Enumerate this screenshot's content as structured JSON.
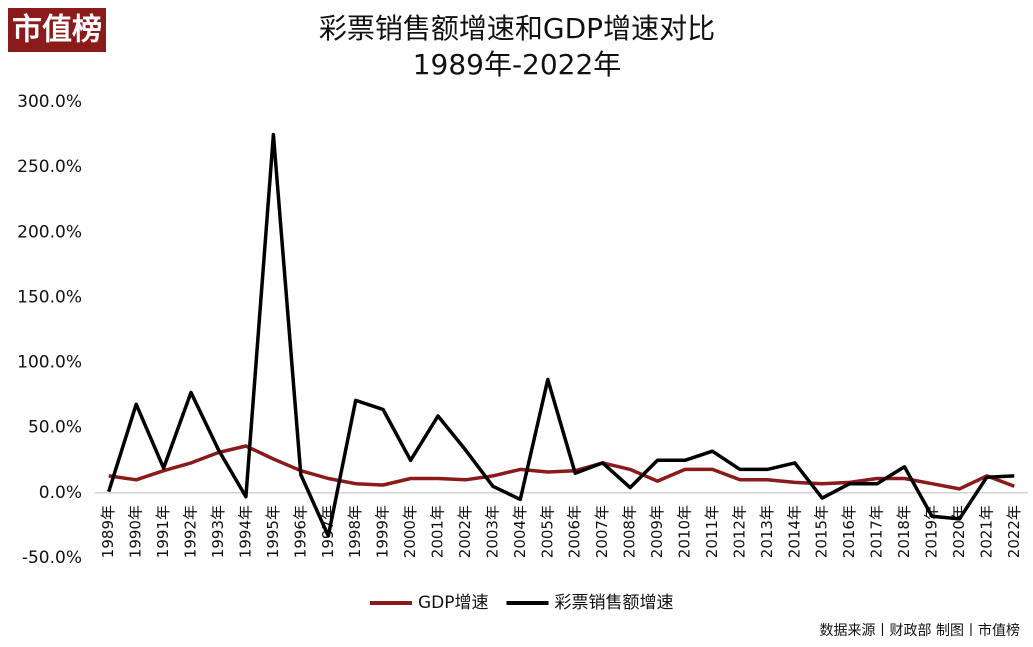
{
  "logo": "市值榜",
  "source": "数据来源丨财政部 制图丨市值榜",
  "chart_data": {
    "type": "line",
    "title": "彩票销售额增速和GDP增速对比",
    "subtitle": "1989年-2022年",
    "categories": [
      "1989年",
      "1990年",
      "1991年",
      "1992年",
      "1993年",
      "1994年",
      "1995年",
      "1996年",
      "1997年",
      "1998年",
      "1999年",
      "2000年",
      "2001年",
      "2002年",
      "2003年",
      "2004年",
      "2005年",
      "2006年",
      "2007年",
      "2008年",
      "2009年",
      "2010年",
      "2011年",
      "2012年",
      "2013年",
      "2014年",
      "2015年",
      "2016年",
      "2017年",
      "2018年",
      "2019年",
      "2020年",
      "2021年",
      "2022年"
    ],
    "series": [
      {
        "name": "GDP增速",
        "color": "#8b1a1a",
        "values": [
          13,
          10,
          17,
          23,
          31,
          36,
          26,
          17,
          11,
          7,
          6,
          11,
          11,
          10,
          13,
          18,
          16,
          17,
          23,
          18,
          9,
          18,
          18,
          10,
          10,
          8,
          7,
          8,
          11,
          11,
          7,
          3,
          13,
          5
        ]
      },
      {
        "name": "彩票销售额增速",
        "color": "#000000",
        "values": [
          1,
          68,
          19,
          77,
          33,
          -3,
          275,
          14,
          -33,
          71,
          64,
          25,
          59,
          33,
          5,
          -5,
          87,
          15,
          23,
          4,
          25,
          25,
          32,
          18,
          18,
          23,
          -4,
          7,
          7,
          20,
          -18,
          -20,
          12,
          13
        ]
      }
    ],
    "ylim": [
      -50,
      300
    ],
    "yticks": [
      {
        "value": -50,
        "label": "-50.0%"
      },
      {
        "value": 0,
        "label": "0.0%"
      },
      {
        "value": 50,
        "label": "50.0%"
      },
      {
        "value": 100,
        "label": "100.0%"
      },
      {
        "value": 150,
        "label": "150.0%"
      },
      {
        "value": 200,
        "label": "200.0%"
      },
      {
        "value": 250,
        "label": "250.0%"
      },
      {
        "value": 300,
        "label": "300.0%"
      }
    ],
    "grid": false,
    "legend": "bottom"
  }
}
